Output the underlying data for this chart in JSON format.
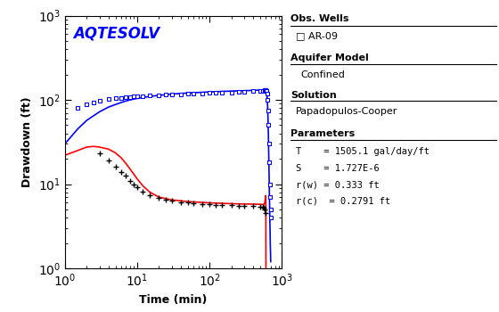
{
  "title": "AQTESOLV",
  "title_color": "#0000FF",
  "xlabel": "Time (min)",
  "ylabel": "Drawdown (ft)",
  "xlim": [
    1,
    1000
  ],
  "ylim": [
    1,
    1000
  ],
  "background_color": "#ffffff",
  "legend_well": "AR-09",
  "aquifer_model": "Confined",
  "solution": "Papadopulos-Cooper",
  "param_T": "T    = 1505.1 gal/day/ft",
  "param_S": "S    = 1.727E-6",
  "param_rw": "r(w) = 0.333 ft",
  "param_rc": "r(c)  = 0.2791 ft",
  "obs_drawdown_t": [
    1.5,
    2.0,
    2.5,
    3.0,
    4.0,
    5.0,
    6.0,
    7.0,
    8.0,
    9.0,
    10.0,
    12.0,
    15.0,
    20.0,
    25.0,
    30.0,
    40.0,
    50.0,
    60.0,
    80.0,
    100.0,
    120.0,
    150.0,
    200.0,
    250.0,
    300.0,
    400.0,
    500.0,
    550.0,
    570.0,
    590.0,
    600.0,
    610.0,
    620.0,
    630.0,
    640.0,
    650.0,
    660.0,
    670.0,
    680.0,
    690.0,
    700.0,
    710.0
  ],
  "obs_drawdown_s": [
    80.0,
    88.0,
    93.0,
    97.0,
    102.0,
    104.0,
    106.0,
    107.5,
    108.5,
    109.5,
    110.0,
    111.0,
    112.0,
    113.5,
    114.5,
    115.5,
    117.0,
    118.0,
    119.0,
    120.0,
    121.0,
    121.5,
    122.0,
    123.0,
    124.0,
    125.0,
    126.5,
    128.0,
    129.0,
    129.5,
    130.0,
    130.5,
    128.0,
    118.0,
    100.0,
    75.0,
    50.0,
    30.0,
    18.0,
    10.0,
    7.0,
    5.0,
    4.0
  ],
  "obs_deriv_t": [
    3.0,
    4.0,
    5.0,
    6.0,
    7.0,
    8.0,
    9.0,
    10.0,
    12.0,
    15.0,
    20.0,
    25.0,
    30.0,
    40.0,
    50.0,
    60.0,
    80.0,
    100.0,
    120.0,
    150.0,
    200.0,
    250.0,
    300.0,
    400.0,
    500.0,
    540.0,
    560.0,
    575.0,
    590.0
  ],
  "obs_deriv_s": [
    23.0,
    19.0,
    16.0,
    14.0,
    12.5,
    11.0,
    10.0,
    9.2,
    8.2,
    7.3,
    6.8,
    6.5,
    6.3,
    6.1,
    6.0,
    5.9,
    5.8,
    5.75,
    5.7,
    5.65,
    5.6,
    5.55,
    5.5,
    5.45,
    5.4,
    5.35,
    5.3,
    5.0,
    4.5
  ],
  "blue_curve_t": [
    1.0,
    1.5,
    2.0,
    3.0,
    4.0,
    5.0,
    6.0,
    7.0,
    8.0,
    10.0,
    12.0,
    15.0,
    20.0,
    30.0,
    50.0,
    80.0,
    120.0,
    200.0,
    350.0,
    500.0,
    580.0,
    600.0,
    610.0,
    620.0,
    630.0,
    640.0,
    650.0,
    660.0,
    670.0,
    680.0,
    690.0,
    700.0
  ],
  "blue_curve_s": [
    30.0,
    45.0,
    57.0,
    72.0,
    82.0,
    88.0,
    93.0,
    97.0,
    100.0,
    104.0,
    107.0,
    110.0,
    113.0,
    117.0,
    120.5,
    123.0,
    125.0,
    127.0,
    129.0,
    130.5,
    131.5,
    132.0,
    130.0,
    120.0,
    95.0,
    65.0,
    38.0,
    18.0,
    8.0,
    4.0,
    2.0,
    1.2
  ],
  "red_curve_t": [
    1.0,
    1.5,
    2.0,
    2.5,
    3.0,
    4.0,
    5.0,
    6.0,
    7.0,
    8.0,
    10.0,
    12.0,
    15.0,
    20.0,
    30.0,
    50.0,
    80.0,
    120.0,
    200.0,
    300.0,
    400.0,
    500.0,
    560.0,
    580.0,
    590.0,
    595.0,
    598.0,
    600.0,
    601.0
  ],
  "red_curve_s": [
    22.0,
    25.0,
    27.5,
    28.0,
    27.5,
    26.0,
    23.5,
    20.5,
    17.5,
    15.0,
    11.5,
    9.5,
    8.0,
    7.0,
    6.5,
    6.2,
    6.05,
    5.95,
    5.85,
    5.8,
    5.78,
    5.75,
    5.72,
    6.0,
    6.8,
    7.2,
    7.3,
    1.2,
    1.0
  ]
}
